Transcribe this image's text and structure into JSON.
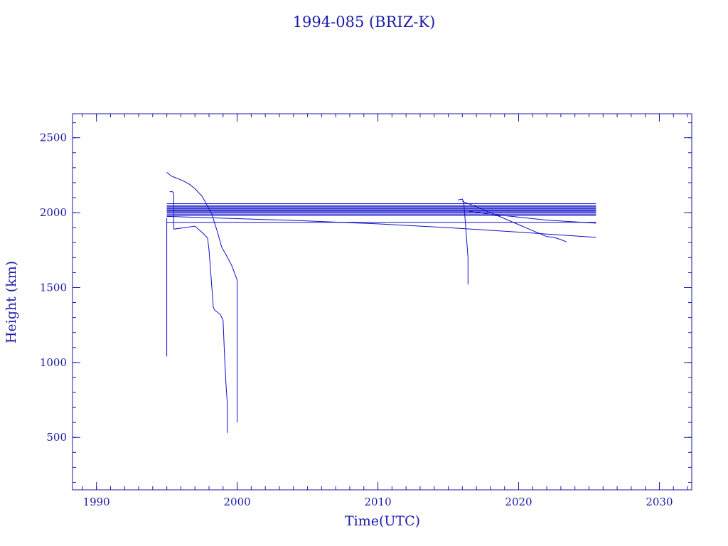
{
  "chart_data": {
    "type": "line",
    "title": "1994-085 (BRIZ-K)",
    "xlabel": "Time(UTC)",
    "ylabel": "Height (km)",
    "xlim": [
      1988.3,
      2032.3
    ],
    "ylim": [
      150,
      2660
    ],
    "x_ticks": [
      1990,
      2000,
      2010,
      2020,
      2030
    ],
    "y_ticks": [
      500,
      1000,
      1500,
      2000,
      2500
    ],
    "x_minor_step": 1,
    "y_minor_step": 100,
    "grid": false,
    "color": "#1010c8",
    "series": [
      {
        "x": [
          1995.0,
          1995.0,
          1995.0
        ],
        "y": [
          1040,
          1960,
          1965
        ]
      },
      {
        "x": [
          1995.0,
          1995.3,
          1995.7,
          1996.2,
          1996.6,
          1997.0,
          1997.5,
          1997.8,
          1998.2,
          1998.6,
          1998.9,
          1999.2,
          1999.6,
          2000.0,
          2000.0
        ],
        "y": [
          2270,
          2245,
          2230,
          2210,
          2190,
          2160,
          2110,
          2060,
          1990,
          1870,
          1770,
          1720,
          1650,
          1550,
          600
        ]
      },
      {
        "x": [
          1995.2,
          1995.4,
          1995.5,
          1995.5,
          1997.0,
          1997.6,
          1997.9,
          1998.0,
          1998.2,
          1998.3,
          1998.4,
          1998.8,
          1999.0,
          1999.1,
          1999.2,
          1999.3,
          1999.3
        ],
        "y": [
          2140,
          2140,
          2130,
          1890,
          1910,
          1860,
          1830,
          1750,
          1500,
          1370,
          1350,
          1320,
          1280,
          1050,
          860,
          720,
          530
        ]
      },
      {
        "x": [
          1995.0,
          2025.5
        ],
        "y": [
          2060,
          2060
        ]
      },
      {
        "x": [
          1995.0,
          2025.5
        ],
        "y": [
          2048,
          2048
        ]
      },
      {
        "x": [
          1995.0,
          2025.5
        ],
        "y": [
          2040,
          2040
        ]
      },
      {
        "x": [
          1995.0,
          2025.5
        ],
        "y": [
          2032,
          2032
        ]
      },
      {
        "x": [
          1995.0,
          2025.5
        ],
        "y": [
          2025,
          2025
        ]
      },
      {
        "x": [
          1995.0,
          2025.5
        ],
        "y": [
          2018,
          2018
        ]
      },
      {
        "x": [
          1995.0,
          2025.5
        ],
        "y": [
          2012,
          2012
        ]
      },
      {
        "x": [
          1995.0,
          2025.5
        ],
        "y": [
          2005,
          2005
        ]
      },
      {
        "x": [
          1995.0,
          2025.5
        ],
        "y": [
          1998,
          1998
        ]
      },
      {
        "x": [
          1995.0,
          2025.5
        ],
        "y": [
          1990,
          1990
        ]
      },
      {
        "x": [
          1995.0,
          2025.5
        ],
        "y": [
          1980,
          1980
        ]
      },
      {
        "x": [
          1995.0,
          2025.5
        ],
        "y": [
          1935,
          1935
        ]
      },
      {
        "x": [
          1995.0,
          2000,
          2005,
          2010,
          2015,
          2020,
          2025.5
        ],
        "y": [
          1975,
          1960,
          1945,
          1925,
          1900,
          1870,
          1835
        ]
      },
      {
        "x": [
          2015.7,
          2016.0,
          2016.1,
          2016.2,
          2016.4,
          2016.4
        ],
        "y": [
          2085,
          2090,
          2070,
          1950,
          1700,
          1520
        ]
      },
      {
        "x": [
          2016.0,
          2017,
          2018,
          2019,
          2020,
          2021,
          2021.5,
          2022,
          2022.5,
          2023,
          2023.4
        ],
        "y": [
          2075,
          2040,
          2000,
          1960,
          1920,
          1880,
          1860,
          1840,
          1835,
          1820,
          1805
        ]
      },
      {
        "x": [
          2016.5,
          2018,
          2020,
          2022,
          2025.5
        ],
        "y": [
          2010,
          1990,
          1970,
          1950,
          1930
        ]
      }
    ]
  }
}
